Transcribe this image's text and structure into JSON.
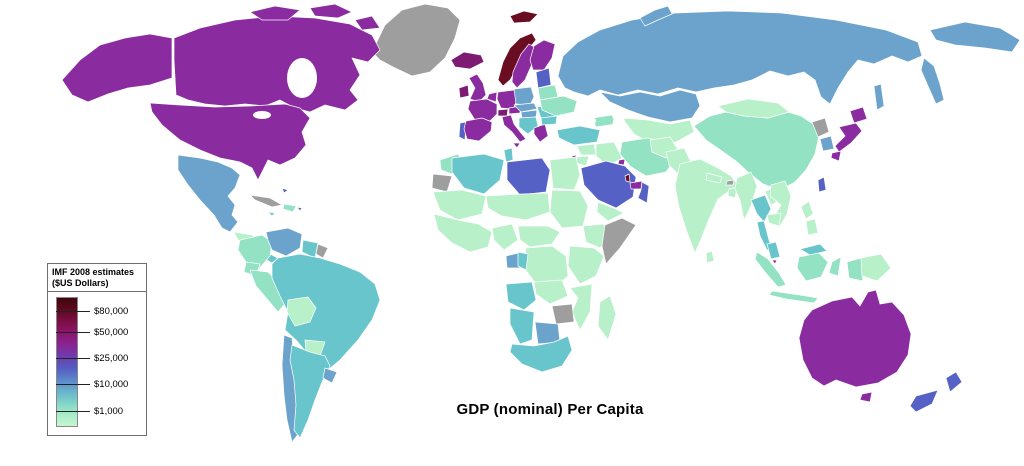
{
  "map_title": "GDP (nominal) Per Capita",
  "legend": {
    "title_line1": "IMF 2008 estimates",
    "title_line2": "($US Dollars)",
    "ticks": [
      {
        "label": "$80,000",
        "pos": 0.11
      },
      {
        "label": "$50,000",
        "pos": 0.27
      },
      {
        "label": "$25,000",
        "pos": 0.48
      },
      {
        "label": "$10,000",
        "pos": 0.68
      },
      {
        "label": "$1,000",
        "pos": 0.89
      }
    ],
    "gradient_stops": [
      "#40050f",
      "#5c0a1e",
      "#7b0e44",
      "#8d156e",
      "#8a2492",
      "#6f3cae",
      "#545cc0",
      "#5c85cb",
      "#68b2cc",
      "#7fd4c9",
      "#a7ecc8",
      "#c4f6d1"
    ]
  },
  "palette": {
    "over_80k": "#6b0d22",
    "55k_70k": "#7d1a72",
    "35k_50k": "#8b2ba0",
    "15k_30k": "#5661c6",
    "8k_15k": "#6ba3cc",
    "4k_8k": "#68c5cb",
    "2k_4k": "#92e2c3",
    "under_2k": "#b7f0c9",
    "no_data": "#9e9e9e"
  },
  "regions": {
    "greenland": "no_data",
    "alaska": "35k_50k",
    "canada": "35k_50k",
    "arctic-island-1": "35k_50k",
    "arctic-island-2": "35k_50k",
    "arctic-island-3": "35k_50k",
    "usa": "35k_50k",
    "mexico": "8k_15k",
    "guatemala-honduras": "under_2k",
    "costa-rica-panama": "4k_8k",
    "cuba": "no_data",
    "hispaniola": "2k_4k",
    "jamaica": "4k_8k",
    "puerto-rico": "15k_30k",
    "bahamas": "15k_30k",
    "colombia": "2k_4k",
    "venezuela": "8k_15k",
    "guyana-suriname": "4k_8k",
    "french-guiana": "no_data",
    "ecuador": "2k_4k",
    "peru": "2k_4k",
    "brazil": "4k_8k",
    "bolivia": "under_2k",
    "paraguay": "under_2k",
    "chile": "8k_15k",
    "argentina": "4k_8k",
    "uruguay": "8k_15k",
    "iceland": "55k_70k",
    "svalbard": "over_80k",
    "norway": "over_80k",
    "sweden": "35k_50k",
    "finland": "35k_50k",
    "denmark": "55k_70k",
    "uk": "35k_50k",
    "ireland": "55k_70k",
    "netherlands-belgium": "35k_50k",
    "germany": "35k_50k",
    "france": "35k_50k",
    "switzerland": "55k_70k",
    "austria": "35k_50k",
    "portugal": "15k_30k",
    "spain": "35k_50k",
    "italy": "35k_50k",
    "sicily": "35k_50k",
    "poland": "8k_15k",
    "czech-slovakia": "8k_15k",
    "hungary": "8k_15k",
    "balkans": "4k_8k",
    "greece": "35k_50k",
    "romania": "4k_8k",
    "bulgaria": "4k_8k",
    "baltics": "15k_30k",
    "belarus": "2k_4k",
    "ukraine": "2k_4k",
    "georgia-azerbaijan": "2k_4k",
    "russia": "8k_15k",
    "novaya-zemlya": "8k_15k",
    "chukotka": "8k_15k",
    "kamchatka": "8k_15k",
    "sakhalin": "8k_15k",
    "kazakhstan": "8k_15k",
    "central-asia": "under_2k",
    "turkey": "4k_8k",
    "syria": "under_2k",
    "iraq": "under_2k",
    "israel": "35k_50k",
    "jordan": "under_2k",
    "saudi-arabia": "15k_30k",
    "kuwait": "35k_50k",
    "qatar": "over_80k",
    "uae": "35k_50k",
    "oman": "15k_30k",
    "yemen": "under_2k",
    "iran": "2k_4k",
    "afghanistan": "under_2k",
    "pakistan": "under_2k",
    "india": "under_2k",
    "sri-lanka": "under_2k",
    "nepal": "under_2k",
    "bhutan": "no_data",
    "bangladesh": "under_2k",
    "china": "2k_4k",
    "mongolia": "under_2k",
    "north-korea": "no_data",
    "south-korea": "8k_15k",
    "japan-hokkaido": "35k_50k",
    "japan-honshu": "35k_50k",
    "japan-kyushu": "35k_50k",
    "taiwan": "15k_30k",
    "myanmar": "under_2k",
    "thailand": "4k_8k",
    "thai-peninsula": "4k_8k",
    "laos": "under_2k",
    "vietnam": "under_2k",
    "cambodia": "under_2k",
    "malaysia-peninsula": "4k_8k",
    "singapore": "35k_50k",
    "malaysia-borneo": "4k_8k",
    "indonesia-sumatra": "2k_4k",
    "indonesia-java": "2k_4k",
    "indonesia-borneo": "2k_4k",
    "indonesia-sulawesi": "2k_4k",
    "indonesia-papua": "2k_4k",
    "png": "under_2k",
    "philippines-north": "under_2k",
    "philippines-south": "under_2k",
    "morocco": "2k_4k",
    "western-sahara": "no_data",
    "algeria": "4k_8k",
    "tunisia": "4k_8k",
    "libya": "15k_30k",
    "egypt": "under_2k",
    "mauritania-mali": "under_2k",
    "niger-chad": "under_2k",
    "sudan": "under_2k",
    "west-africa": "under_2k",
    "nigeria": "under_2k",
    "cameroon-car": "under_2k",
    "ethiopia": "under_2k",
    "somalia": "no_data",
    "kenya-tanzania": "under_2k",
    "drc": "under_2k",
    "gabon": "8k_15k",
    "congo-brazzaville": "4k_8k",
    "angola": "4k_8k",
    "zambia": "under_2k",
    "mozambique": "under_2k",
    "zimbabwe": "no_data",
    "botswana": "8k_15k",
    "namibia": "4k_8k",
    "south-africa": "4k_8k",
    "madagascar": "under_2k",
    "australia": "35k_50k",
    "tasmania": "35k_50k",
    "new-zealand-north": "15k_30k",
    "new-zealand-south": "15k_30k"
  }
}
